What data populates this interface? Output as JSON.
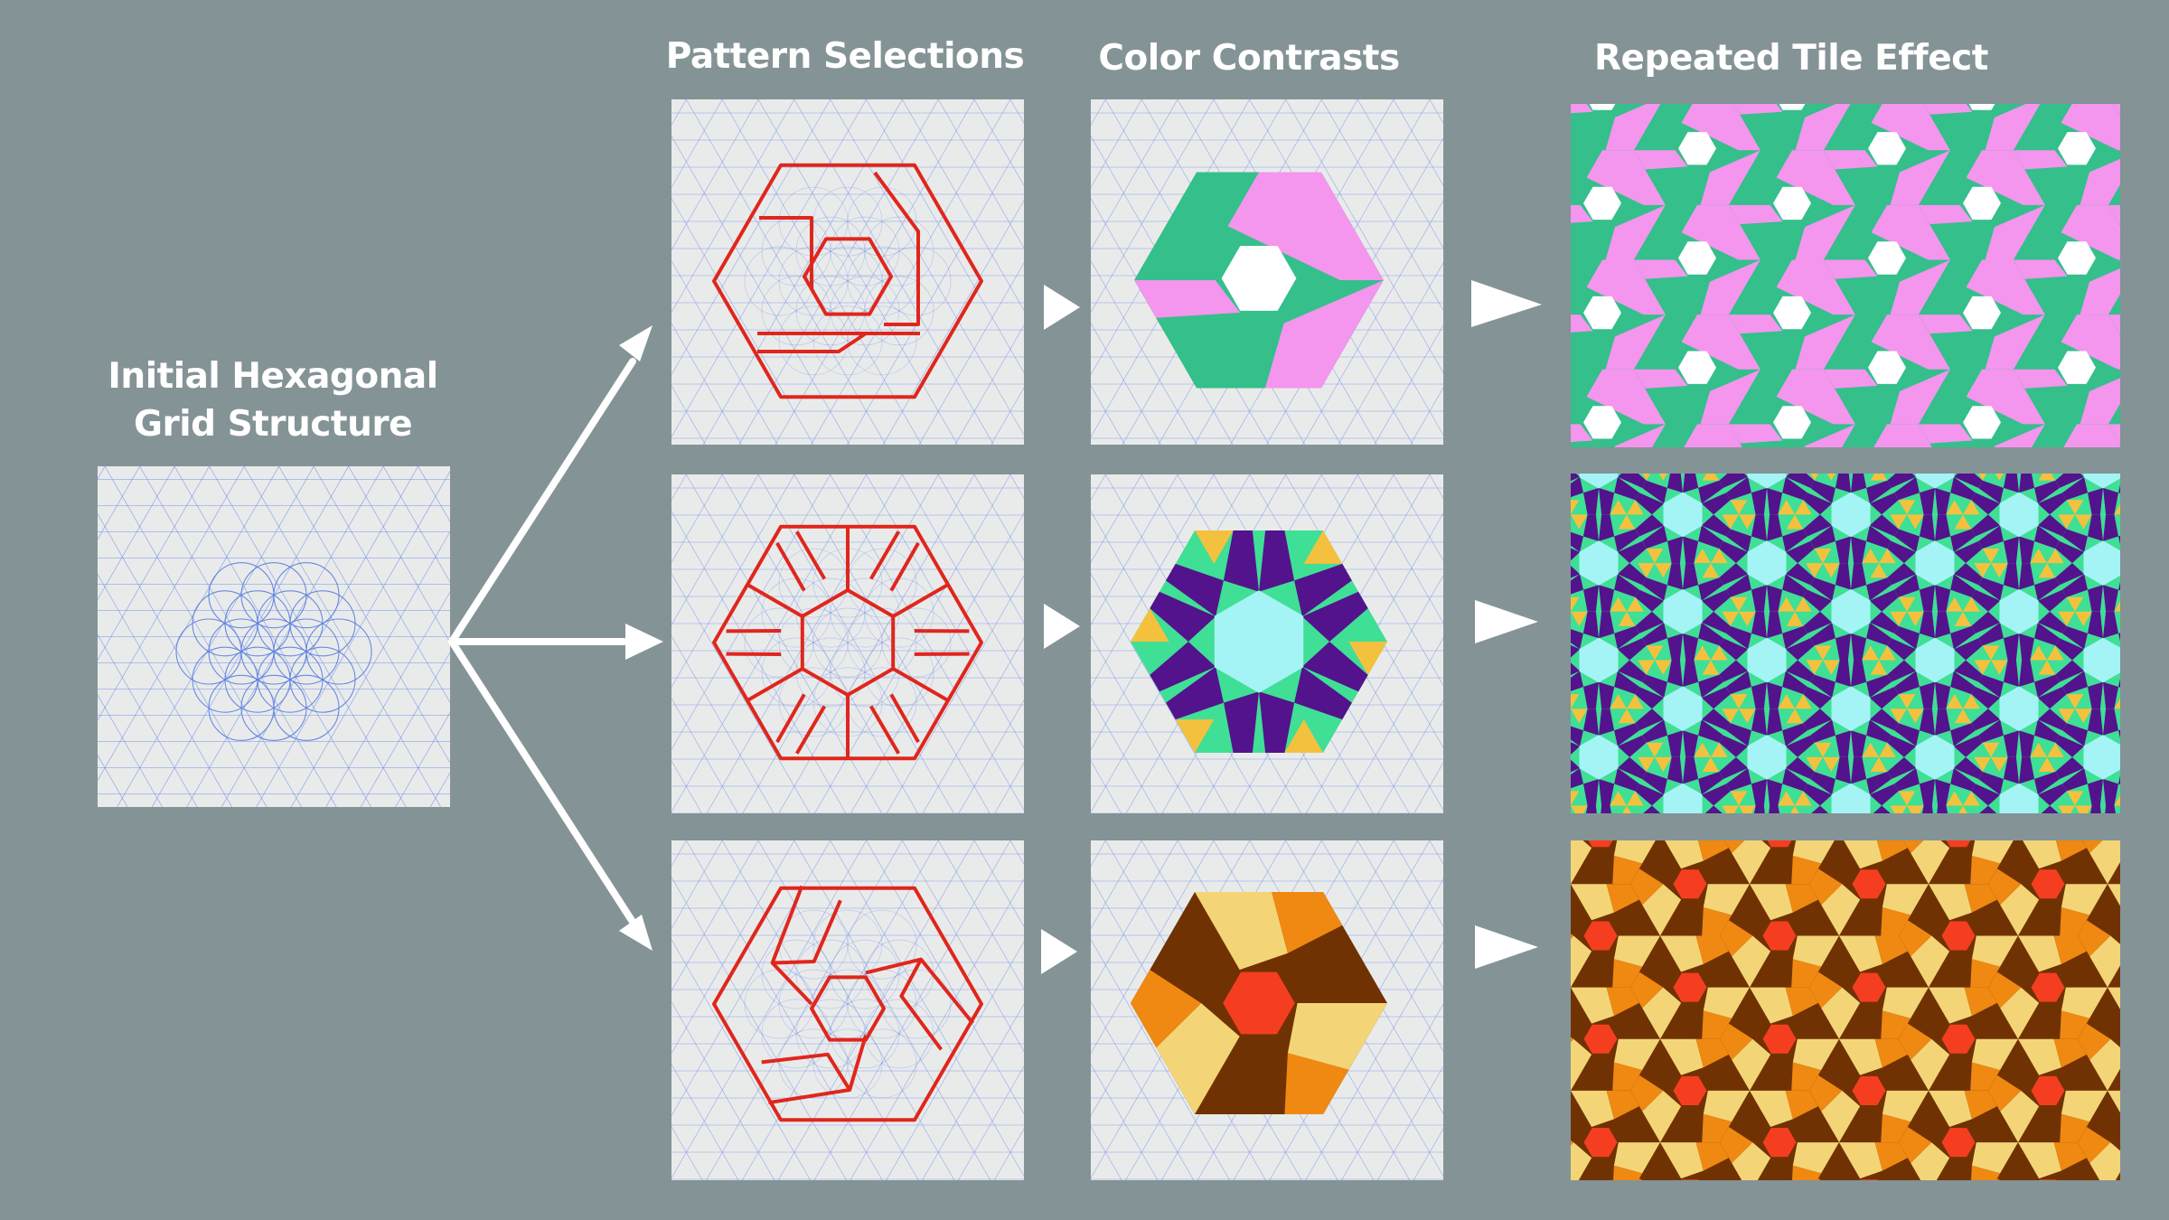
{
  "headers": {
    "initial_line1": "Initial Hexagonal",
    "initial_line2": "Grid Structure",
    "patterns": "Pattern Selections",
    "colors": "Color Contrasts",
    "repeated": "Repeated Tile Effect"
  },
  "palettes": {
    "grid_line": "#5b7ee0",
    "pattern_line": "#e0261c",
    "panel_bg": "#e9ebeb",
    "row1": {
      "main": "#34bf8b",
      "accent": "#f495ee",
      "center": "#ffffff"
    },
    "row2": {
      "main": "#3fdf95",
      "dark": "#53138c",
      "gold": "#f4c13f",
      "center": "#a4f4f6"
    },
    "row3": {
      "dark": "#703203",
      "light": "#f3d577",
      "orange": "#ef8912",
      "center": "#f53e20"
    }
  }
}
